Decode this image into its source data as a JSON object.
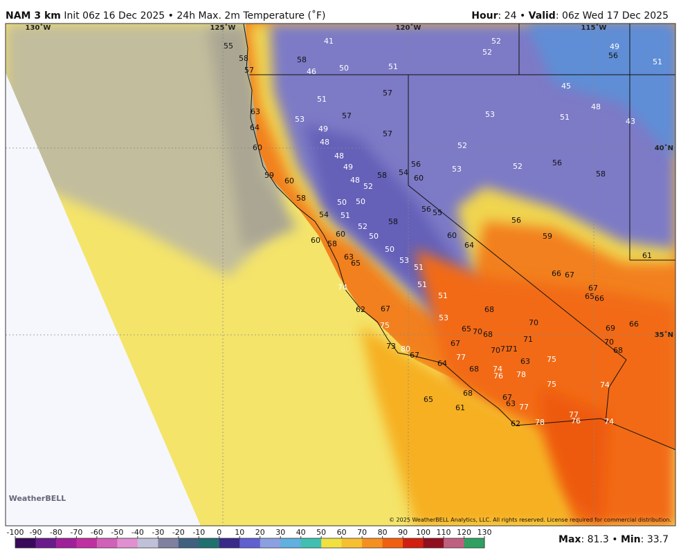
{
  "header": {
    "model": "NAM 3 km",
    "init": "Init 06z 16 Dec 2025",
    "separator": "•",
    "product": "24h Max. 2m Temperature (˚F)",
    "hour_label": "Hour",
    "hour_value": ": 24 •",
    "valid_label": "Valid",
    "valid_value": ": 06z Wed 17 Dec 2025"
  },
  "map": {
    "longitudes": [
      "130˚W",
      "125˚W",
      "120˚W",
      "115˚W"
    ],
    "latitudes": [
      "40˚N",
      "35˚N"
    ],
    "station_values": [
      55,
      58,
      57,
      41,
      58,
      46,
      50,
      51,
      52,
      52,
      49,
      56,
      51,
      57,
      51,
      45,
      48,
      53,
      51,
      43,
      63,
      53,
      57,
      49,
      64,
      57,
      48,
      52,
      60,
      48,
      49,
      56,
      53,
      52,
      56,
      58,
      59,
      60,
      54,
      60,
      58,
      48,
      52,
      58,
      50,
      50,
      54,
      51,
      56,
      55,
      56,
      58,
      52,
      60,
      50,
      60,
      58,
      60,
      64,
      59,
      50,
      63,
      65,
      53,
      51,
      61,
      66,
      67,
      74,
      51,
      67,
      65,
      66,
      51,
      62,
      67,
      68,
      70,
      53,
      66,
      75,
      65,
      70,
      68,
      69,
      71,
      73,
      80,
      67,
      70,
      70,
      71,
      71,
      68,
      67,
      77,
      63,
      75,
      64,
      68,
      74,
      76,
      78,
      75,
      74,
      65,
      68,
      67,
      63,
      77,
      61,
      77,
      76,
      74,
      62,
      78
    ],
    "copyright": "© 2025 WeatherBELL Analytics, LLC. All rights reserved. License required for commercial distribution.",
    "logo": "WeatherBELL"
  },
  "colorbar": {
    "ticks": [
      -100,
      -90,
      -80,
      -70,
      -60,
      -50,
      -40,
      -30,
      -20,
      -10,
      0,
      10,
      20,
      30,
      40,
      50,
      60,
      70,
      80,
      90,
      100,
      110,
      120,
      130
    ]
  },
  "footer": {
    "max_label": "Max",
    "max_value": ": 81.3 •",
    "min_label": "Min",
    "min_value": ": 33.7"
  }
}
